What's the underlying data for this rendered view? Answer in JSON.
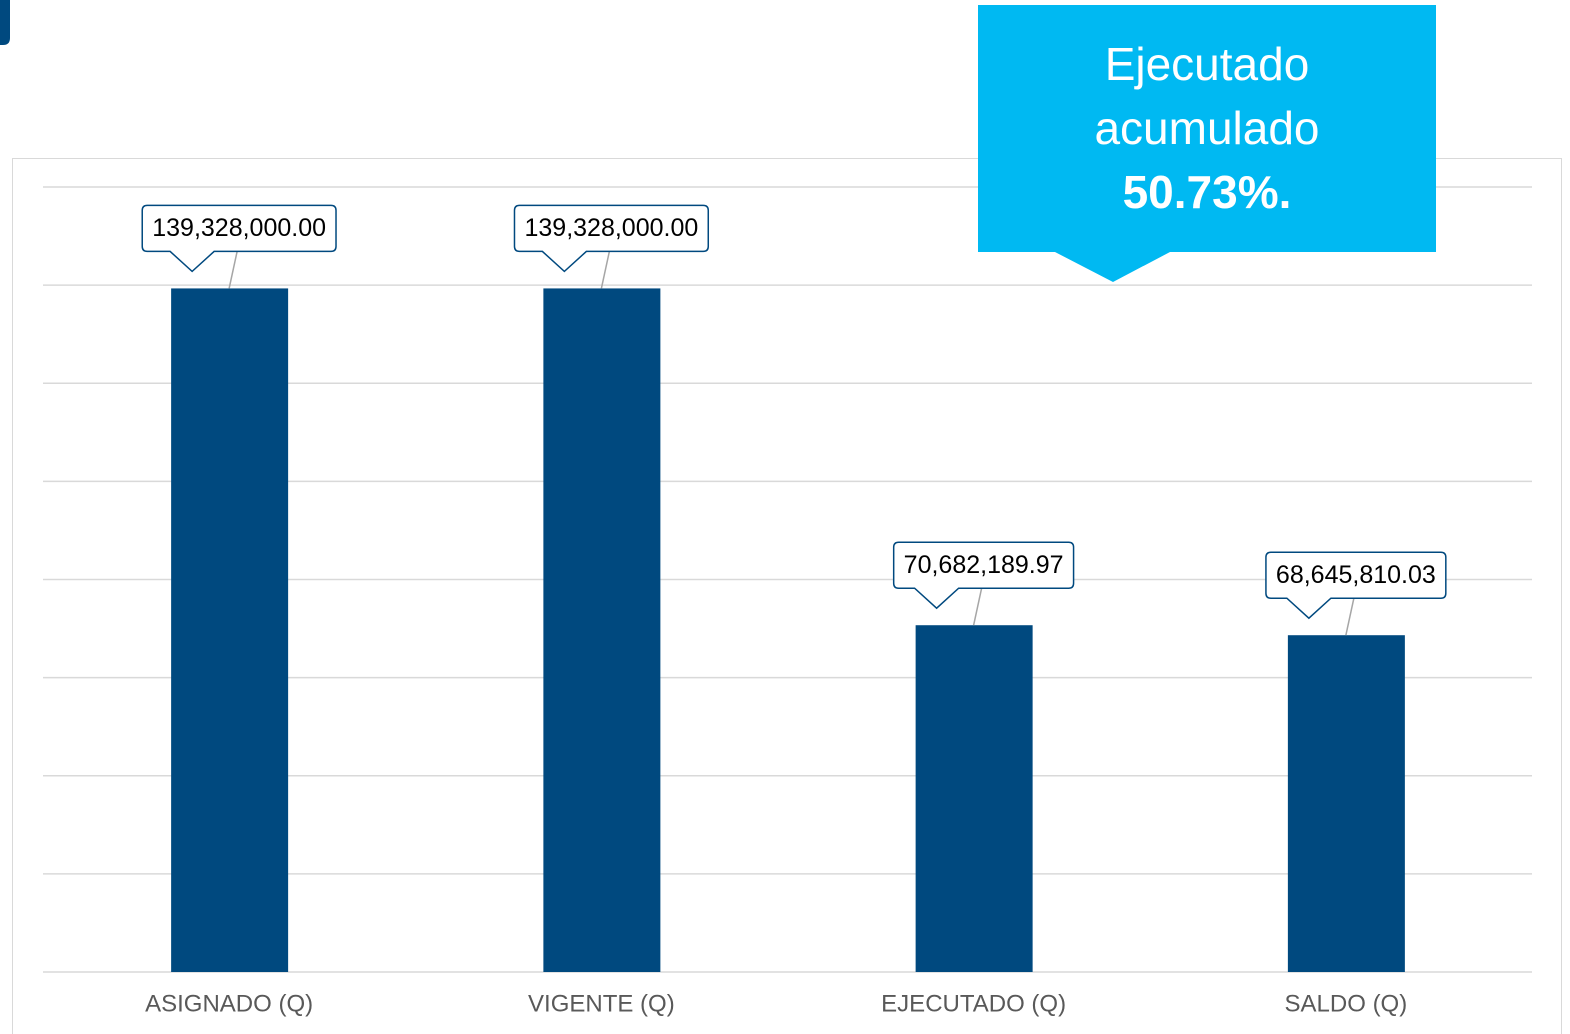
{
  "chart_data": {
    "type": "bar",
    "categories": [
      "ASIGNADO (Q)",
      "VIGENTE (Q)",
      "EJECUTADO (Q)",
      "SALDO (Q)"
    ],
    "values": [
      139328000.0,
      139328000.0,
      70682189.97,
      68645810.03
    ],
    "value_labels": [
      "139,328,000.00",
      "139,328,000.00",
      "70,682,189.97",
      "68,645,810.03"
    ],
    "color": "#00497f",
    "ylim": [
      0,
      160000000
    ],
    "yticks": [
      0,
      20000000,
      40000000,
      60000000,
      80000000,
      100000000,
      120000000,
      140000000,
      160000000
    ],
    "grid": true,
    "annotation": {
      "lines": [
        "Ejecutado",
        "acumulado"
      ],
      "highlight": "50.73%.",
      "color": "#00b9f2"
    }
  }
}
